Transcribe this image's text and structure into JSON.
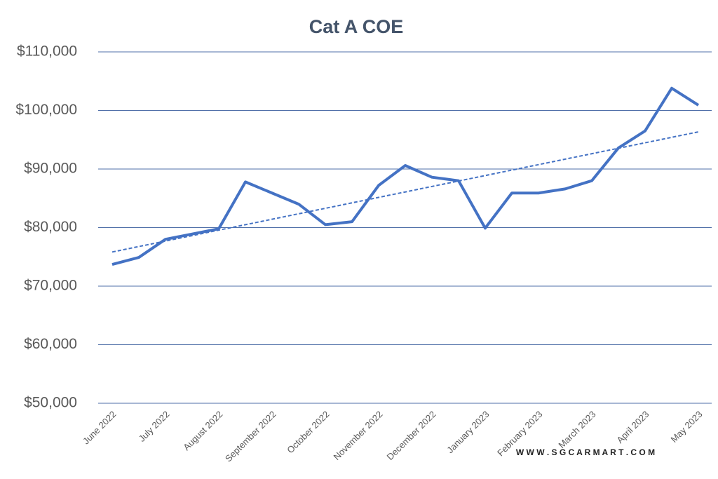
{
  "chart_data": {
    "type": "line",
    "title": "Cat A COE",
    "categories": [
      "June 2022",
      null,
      "July 2022",
      null,
      "August 2022",
      null,
      "September 2022",
      null,
      "October 2022",
      null,
      "November 2022",
      null,
      "December 2022",
      null,
      "January 2023",
      null,
      "February 2023",
      null,
      "March 2023",
      null,
      "April 2023",
      null,
      "May 2023"
    ],
    "series": [
      {
        "name": "Cat A COE",
        "color": "#4472c4",
        "values": [
          73700,
          74900,
          78000,
          78900,
          79800,
          87800,
          85900,
          84000,
          80500,
          81000,
          87200,
          90600,
          88600,
          88000,
          79900,
          85900,
          85900,
          86600,
          88000,
          93600,
          96500,
          103800,
          100900
        ]
      }
    ],
    "ylim": [
      50000,
      110000
    ],
    "yticks": [
      {
        "value": 50000,
        "label": "$50,000"
      },
      {
        "value": 60000,
        "label": "$60,000"
      },
      {
        "value": 70000,
        "label": "$70,000"
      },
      {
        "value": 80000,
        "label": "$80,000"
      },
      {
        "value": 90000,
        "label": "$90,000"
      },
      {
        "value": 100000,
        "label": "$100,000"
      },
      {
        "value": 110000,
        "label": "$110,000"
      }
    ],
    "grid": true,
    "trendline": true,
    "watermark": "W W W . S G C A R M A R T . C O M"
  }
}
